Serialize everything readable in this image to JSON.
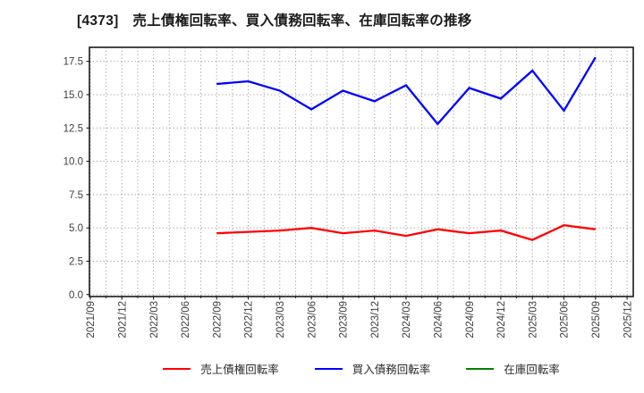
{
  "title": "[4373]　売上債権回転率、買入債務回転率、在庫回転率の推移",
  "chart_data": {
    "type": "line",
    "title": "[4373]　売上債権回転率、買入債務回転率、在庫回転率の推移",
    "xlabel": "",
    "ylabel": "",
    "ylim": [
      0,
      18.5
    ],
    "grid": true,
    "legend_position": "bottom",
    "categories": [
      "2021/09",
      "2021/12",
      "2022/03",
      "2022/06",
      "2022/09",
      "2022/12",
      "2023/03",
      "2023/06",
      "2023/09",
      "2023/12",
      "2024/03",
      "2024/06",
      "2024/09",
      "2024/12",
      "2025/03",
      "2025/06",
      "2025/09",
      "2025/12"
    ],
    "yticks": [
      0,
      2.5,
      5,
      7.5,
      10,
      12.5,
      15,
      17.5
    ],
    "ytick_labels": [
      "0.0",
      "2.5",
      "5.0",
      "7.5",
      "10.0",
      "12.5",
      "15.0",
      "17.5"
    ],
    "series": [
      {
        "name": "売上債権回転率",
        "color": "#ff0000",
        "values": [
          null,
          null,
          null,
          null,
          4.6,
          4.7,
          4.8,
          5.0,
          4.6,
          4.8,
          4.4,
          4.9,
          4.6,
          4.8,
          4.1,
          5.2,
          4.9,
          null
        ]
      },
      {
        "name": "買入債務回転率",
        "color": "#0000ff",
        "values": [
          null,
          null,
          null,
          null,
          15.8,
          16.0,
          15.3,
          13.9,
          15.3,
          14.5,
          15.7,
          12.8,
          15.5,
          14.7,
          16.8,
          13.8,
          17.8,
          null
        ]
      },
      {
        "name": "在庫回転率",
        "color": "#008000",
        "values": [
          null,
          null,
          null,
          null,
          null,
          null,
          null,
          null,
          null,
          null,
          null,
          null,
          null,
          null,
          null,
          null,
          null,
          null
        ]
      }
    ]
  }
}
